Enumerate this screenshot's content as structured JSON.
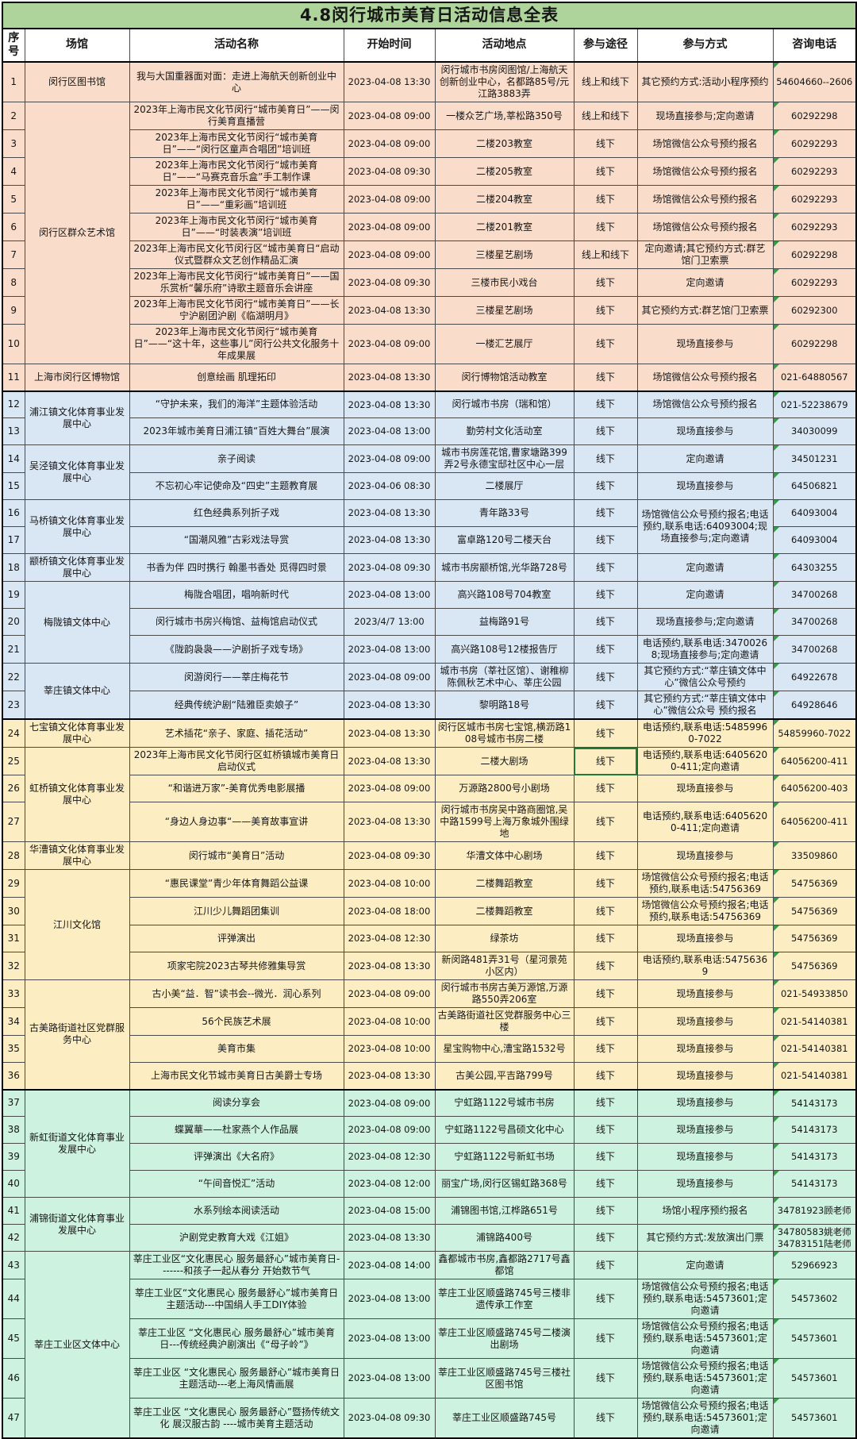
{
  "title": "4.8闵行城市美育日活动信息全表",
  "columns": [
    "序号",
    "场馆",
    "活动名称",
    "开始时间",
    "活动地点",
    "参与途径",
    "参与方式",
    "咨询电话"
  ],
  "colors": {
    "title_bg": "#aed49b",
    "header_bg": "#ffffff",
    "group_bgs": [
      "#f9dcc9",
      "#d9e6f4",
      "#fcedc2",
      "#cdf2df"
    ],
    "selected_cell_border": "#1f7a3d",
    "error_triangle": "#2f9e44"
  },
  "rows": [
    {
      "no": "1",
      "venue": "闵行区图书馆",
      "venue_span": 1,
      "group": 0,
      "name": "我与大国重器面对面：走进上海航天创新创业中心",
      "time": "2023-04-08 13:30",
      "place": "闵行城市书房闵图馆/上海航天创新创业中心，名都路85号/元江路3883弄",
      "channel": "线上和线下",
      "method": "其它预约方式:活动小程序预约",
      "phone": "54604660--2606"
    },
    {
      "no": "2",
      "venue": "闵行区群众艺术馆",
      "venue_span": 9,
      "group": 0,
      "name": "2023年上海市民文化节闵行“城市美育日”——闵行美育直播营",
      "time": "2023-04-08 09:00",
      "place": "一楼众艺广场,莘松路350号",
      "channel": "线上和线下",
      "method": "现场直接参与;定向邀请",
      "phone": "60292298"
    },
    {
      "no": "3",
      "group": 0,
      "name": "2023年上海市民文化节闵行“城市美育日”——“闵行区童声合唱团”培训班",
      "time": "2023-04-08 09:00",
      "place": "二楼203教室",
      "channel": "线下",
      "method": "场馆微信公众号预约报名",
      "phone": "60292293"
    },
    {
      "no": "4",
      "group": 0,
      "name": "2023年上海市民文化节闵行“城市美育日”——“马赛克音乐盒”手工制作课",
      "time": "2023-04-08 09:30",
      "place": "二楼205教室",
      "channel": "线下",
      "method": "场馆微信公众号预约报名",
      "phone": "60292293"
    },
    {
      "no": "5",
      "group": 0,
      "name": "2023年上海市民文化节闵行“城市美育日”——“重彩画”培训班",
      "time": "2023-04-08 09:00",
      "place": "二楼204教室",
      "channel": "线下",
      "method": "场馆微信公众号预约报名",
      "phone": "60292293"
    },
    {
      "no": "6",
      "group": 0,
      "name": "2023年上海市民文化节闵行“城市美育日”——“时装表演”培训班",
      "time": "2023-04-08 09:00",
      "place": "二楼201教室",
      "channel": "线下",
      "method": "场馆微信公众号预约报名",
      "phone": "60292293"
    },
    {
      "no": "7",
      "group": 0,
      "name": "2023年上海市民文化节闵行区“城市美育日“启动仪式暨群众文艺创作精品汇演",
      "time": "2023-04-08 09:00",
      "place": "三楼星艺剧场",
      "channel": "线上和线下",
      "method": "定向邀请;其它预约方式:群艺馆门卫索票",
      "phone": "60292298"
    },
    {
      "no": "8",
      "group": 0,
      "name": "2023年上海市民文化节闵行“城市美育日”——国乐赏析“馨乐府”诗歌主题音乐会讲座",
      "time": "2023-04-08 09:30",
      "place": "三楼市民小戏台",
      "channel": "线下",
      "method": "定向邀请",
      "phone": "60292293"
    },
    {
      "no": "9",
      "group": 0,
      "name": "2023年上海市民文化节闵行“城市美育日”——长宁沪剧团沪剧《临湖明月》",
      "time": "2023-04-08 13:30",
      "place": "三楼星艺剧场",
      "channel": "线下",
      "method": "其它预约方式:群艺馆门卫索票",
      "phone": "60292300"
    },
    {
      "no": "10",
      "group": 0,
      "name": "2023年上海市民文化节闵行“城市美育日”——“这十年，这些事儿”闵行公共文化服务十年成果展",
      "time": "2023-04-08 09:00",
      "place": "一楼汇艺展厅",
      "channel": "线下",
      "method": "现场直接参与",
      "phone": "60292298"
    },
    {
      "no": "11",
      "venue": "上海市闵行区博物馆",
      "venue_span": 1,
      "group": 0,
      "name": "创意绘画 肌理拓印",
      "time": "2023-04-08 13:30",
      "place": "闵行博物馆活动教室",
      "channel": "线下",
      "method": "场馆微信公众号预约报名",
      "phone": "021-64880567"
    },
    {
      "no": "12",
      "venue": "浦江镇文化体育事业发展中心",
      "venue_span": 2,
      "group": 1,
      "name": "“守护未来，我们的海洋”主题体验活动",
      "time": "2023-04-08 13:30",
      "place": "闵行城市书房（瑞和馆）",
      "channel": "线下",
      "method": "场馆微信公众号预约报名",
      "phone": "021-52238679"
    },
    {
      "no": "13",
      "group": 1,
      "name": "2023年城市美育日浦江镇“百姓大舞台”展演",
      "time": "2023-04-08 13:00",
      "place": "勤劳村文化活动室",
      "channel": "线下",
      "method": "现场直接参与",
      "phone": "34030099"
    },
    {
      "no": "14",
      "venue": "吴泾镇文化体育事业发展中心",
      "venue_span": 2,
      "group": 1,
      "name": "亲子阅读",
      "time": "2023-04-08 09:00",
      "place": "城市书房莲花馆,曹家塘路399弄2号永德宝邸社区中心一层",
      "channel": "线下",
      "method": "定向邀请",
      "phone": "34501231"
    },
    {
      "no": "15",
      "group": 1,
      "name": "不忘初心牢记使命及“四史”主题教育展",
      "time": "2023-04-06 08:30",
      "place": "二楼展厅",
      "channel": "线下",
      "method": "现场直接参与",
      "phone": "64506821"
    },
    {
      "no": "16",
      "venue": "马桥镇文化体育事业发展中心",
      "venue_span": 2,
      "group": 1,
      "name": "红色经典系列折子戏",
      "time": "2023-04-08 13:30",
      "place": "青年路33号",
      "channel": "线下",
      "method": "场馆微信公众号预约报名;电话预约,联系电话:64093004;现场直接参与;定向邀请",
      "method_span": 2,
      "phone": "64093004"
    },
    {
      "no": "17",
      "group": 1,
      "name": "“国潮风雅”古彩戏法导赏",
      "time": "2023-04-08 13:30",
      "place": "富卓路120号二楼天台",
      "channel": "线下",
      "phone": "64093004"
    },
    {
      "no": "18",
      "venue": "颛桥镇文化体育事业发展中心",
      "venue_span": 1,
      "group": 1,
      "name": "书香为伴 四时携行 翰墨书香处 觅得四时景",
      "time": "2023-04-08 09:30",
      "place": "城市书房颛桥馆,光华路728号",
      "channel": "线下",
      "method": "定向邀请",
      "phone": "64303255"
    },
    {
      "no": "19",
      "venue": "梅陇镇文体中心",
      "venue_span": 3,
      "group": 1,
      "name": "梅陇合唱团，唱响新时代",
      "time": "2023-04-08 13:00",
      "place": "高兴路108号704教室",
      "channel": "线下",
      "method": "定向邀请",
      "phone": "34700268"
    },
    {
      "no": "20",
      "group": 1,
      "name": "闵行城市书房兴梅馆、益梅馆启动仪式",
      "time": "2023/4/7 13:00",
      "place": "益梅路91号",
      "channel": "线下",
      "method": "现场直接参与;定向邀请",
      "phone": "34700268"
    },
    {
      "no": "21",
      "group": 1,
      "name": "《陇韵袅袅——沪剧折子戏专场》",
      "time": "2023-04-08 13:00",
      "place": "高兴路108号12楼报告厅",
      "channel": "线下",
      "method": "电话预约,联系电话:34700268;现场直接参与;定向邀请",
      "phone": "34700268"
    },
    {
      "no": "22",
      "venue": "莘庄镇文体中心",
      "venue_span": 2,
      "group": 1,
      "name": "闵游闵行——莘庄梅花节",
      "time": "2023-04-08 09:00",
      "place": "城市书房（莘社区馆）、谢稚柳陈佩秋艺术中心、莘庄公园",
      "channel": "线下",
      "method": "其它预约方式:“莘庄镇文体中心”微信公众号预约",
      "phone": "64922678"
    },
    {
      "no": "23",
      "group": 1,
      "name": "经典传统沪剧“陆雅臣卖娘子”",
      "time": "2023-04-08 13:30",
      "place": "黎明路18号",
      "channel": "线下",
      "method": "其它预约方式:“莘庄镇文体中心”微信公众号 预约报名",
      "phone": "64928646"
    },
    {
      "no": "24",
      "venue": "七宝镇文化体育事业发展中心",
      "venue_span": 1,
      "group": 2,
      "name": "艺术插花“亲子、家庭、插花活动”",
      "time": "2023-04-08 13:30",
      "place": "闵行区城市书房七宝馆,横沥路108号城市书房二楼",
      "channel": "线下",
      "method": "电话预约,联系电话:54859960-7022",
      "phone": "54859960-7022"
    },
    {
      "no": "25",
      "venue": "虹桥镇文化体育事业发展中心",
      "venue_span": 3,
      "group": 2,
      "name": "2023年上海市民文化节闵行区虹桥镇城市美育日启动仪式",
      "time": "2023-04-08 13:30",
      "place": "二楼大剧场",
      "channel": "线下",
      "selected": true,
      "method": "电话预约,联系电话:64056200-411;定向邀请",
      "phone": "64056200-411"
    },
    {
      "no": "26",
      "group": 2,
      "name": "“和谐进万家”-美育优秀电影展播",
      "time": "2023-04-08 09:00",
      "place": "万源路2800号小剧场",
      "channel": "线下",
      "method": "现场直接参与",
      "phone": "64056200-403"
    },
    {
      "no": "27",
      "group": 2,
      "name": "“身边人身边事“——美育故事宣讲",
      "time": "2023-04-08 13:30",
      "place": "闵行城市书房吴中路商圈馆,吴中路1599号上海万象城外围绿地",
      "channel": "线下",
      "method": "电话预约,联系电话:64056200-411;定向邀请",
      "phone": "64056200-411"
    },
    {
      "no": "28",
      "venue": "华漕镇文化体育事业发展中心",
      "venue_span": 1,
      "group": 2,
      "name": "闵行城市“美育日”活动",
      "time": "2023-04-08 09:30",
      "place": "华漕文体中心剧场",
      "channel": "线下",
      "method": "现场直接参与",
      "phone": "33509860"
    },
    {
      "no": "29",
      "venue": "江川文化馆",
      "venue_span": 4,
      "group": 2,
      "name": "“惠民课堂”青少年体育舞蹈公益课",
      "time": "2023-04-08 10:00",
      "place": "二楼舞蹈教室",
      "channel": "线下",
      "method": "场馆微信公众号预约报名;电话预约,联系电话:54756369",
      "phone": "54756369"
    },
    {
      "no": "30",
      "group": 2,
      "name": "江川少儿舞蹈团集训",
      "time": "2023-04-08 18:00",
      "place": "二楼舞蹈教室",
      "channel": "线下",
      "method": "场馆微信公众号预约报名;电话预约,联系电话:54756369",
      "phone": "54756369"
    },
    {
      "no": "31",
      "group": 2,
      "name": "评弹演出",
      "time": "2023-04-08 12:30",
      "place": "绿茶坊",
      "channel": "线下",
      "method": "现场直接参与",
      "phone": "54756369"
    },
    {
      "no": "32",
      "group": 2,
      "name": "项家宅院2023古琴共修雅集导赏",
      "time": "2023-04-08 13:30",
      "place": "新闵路481弄31号（星河景苑小区内）",
      "channel": "线下",
      "method": "电话预约,联系电话:54756369",
      "phone": "54756369"
    },
    {
      "no": "33",
      "venue": "古美路街道社区党群服务中心",
      "venue_span": 4,
      "group": 2,
      "name": "古小美“益．智”读书会--微光．润心系列",
      "time": "2023-04-08 09:00",
      "place": "闵行城市书房古美万源馆,万源路550弄206室",
      "channel": "线下",
      "method": "现场直接参与",
      "phone": "021-54933850"
    },
    {
      "no": "34",
      "group": 2,
      "name": "56个民族艺术展",
      "time": "2023-04-08 10:00",
      "place": "古美路街道社区党群服务中心三楼",
      "channel": "线下",
      "method": "现场直接参与",
      "phone": "021-54140381"
    },
    {
      "no": "35",
      "group": 2,
      "name": "美育市集",
      "time": "2023-04-08 10:00",
      "place": "星宝购物中心,漕宝路1532号",
      "channel": "线下",
      "method": "现场直接参与",
      "phone": "021-54140381"
    },
    {
      "no": "36",
      "group": 2,
      "name": "上海市民文化节城市美育日古美爵士专场",
      "time": "2023-04-08 13:30",
      "place": "古美公园,平吉路799号",
      "channel": "线下",
      "method": "现场直接参与",
      "phone": "021-54140381"
    },
    {
      "no": "37",
      "venue": "新虹街道文化体育事业发展中心",
      "venue_span": 4,
      "group": 3,
      "name": "阅读分享会",
      "time": "2023-04-08 09:00",
      "place": "宁虹路1122号城市书房",
      "channel": "线下",
      "method": "现场直接参与",
      "phone": "54143173"
    },
    {
      "no": "38",
      "group": 3,
      "name": "蝶翼華——杜家燕个人作品展",
      "time": "2023-04-08 09:00",
      "place": "宁虹路1122号昌硕文化中心",
      "channel": "线下",
      "method": "现场直接参与",
      "phone": "54143173"
    },
    {
      "no": "39",
      "group": 3,
      "name": "评弹演出《大名府》",
      "time": "2023-04-08 12:30",
      "place": "宁虹路1122号新虹书场",
      "channel": "线下",
      "method": "现场直接参与",
      "phone": "54143173"
    },
    {
      "no": "40",
      "group": 3,
      "name": "“午间音悦汇”活动",
      "time": "2023-04-08 12:00",
      "place": "丽宝广场,闵行区锡虹路368号",
      "channel": "线下",
      "method": "现场直接参与",
      "phone": "54143173"
    },
    {
      "no": "41",
      "venue": "浦锦街道文化体育事业发展中心",
      "venue_span": 2,
      "group": 3,
      "name": "水系列绘本阅读活动",
      "time": "2023-04-08 15:00",
      "place": "浦锦图书馆,江桦路651号",
      "channel": "线下",
      "method": "场馆小程序预约报名",
      "phone": "34781923顾老师"
    },
    {
      "no": "42",
      "group": 3,
      "name": "沪剧党史教育大戏《江姐》",
      "time": "2023-04-08 13:30",
      "place": "浦锦路400号",
      "channel": "线下",
      "method": "其它预约方式:发放演出门票",
      "phone": "34780583姚老师 34783151陆老师"
    },
    {
      "no": "43",
      "venue": "莘庄工业区文体中心",
      "venue_span": 5,
      "group": 3,
      "name": "莘庄工业区“文化惠民心 服务最舒心”城市美育日-------和孩子一起从春分 开始数节气",
      "time": "2023-04-08 14:00",
      "place": "鑫都城市书房,鑫都路2717号鑫都馆",
      "channel": "线下",
      "method": "定向邀请",
      "phone": "52966923"
    },
    {
      "no": "44",
      "group": 3,
      "name": "莘庄工业区“文化惠民心 服务最舒心”城市美育日主题活动---中国绢人手工DIY体验",
      "time": "2023-04-08 13:00",
      "place": "莘庄工业区顺盛路745号三楼非遗传承工作室",
      "channel": "线下",
      "method": "场馆微信公众号预约报名;电话预约,联系电话:54573601;定向邀请",
      "phone": "54573602"
    },
    {
      "no": "45",
      "group": 3,
      "name": "莘庄工业区 “文化惠民心 服务最舒心”城市美育日---传统经典沪剧演出《“母子岭”》",
      "time": "2023-04-08 13:00",
      "place": "莘庄工业区顺盛路745号二楼演出剧场",
      "channel": "线下",
      "method": "场馆微信公众号预约报名;电话预约,联系电话:54573601;定向邀请",
      "phone": "54573601"
    },
    {
      "no": "46",
      "group": 3,
      "name": "莘庄工业区 “文化惠民心 服务最舒心”城市美育日主题活动---老上海风情画展",
      "time": "2023-04-08 13:00",
      "place": "莘庄工业区顺盛路745号三楼社区图书馆",
      "channel": "线下",
      "method": "场馆微信公众号预约报名;电话预约,联系电话:54573601;定向邀请",
      "phone": "54573601"
    },
    {
      "no": "47",
      "group": 3,
      "name": "莘庄工业区 “文化惠民心 服务最舒心”暨扬传统文化 展汉服古韵 ----城市美育主题活动",
      "time": "2023-04-08 09:30",
      "place": "莘庄工业区顺盛路745号",
      "channel": "线下",
      "method": "场馆微信公众号预约报名;电话预约,联系电话:54573601;定向邀请",
      "phone": "54573601"
    }
  ]
}
